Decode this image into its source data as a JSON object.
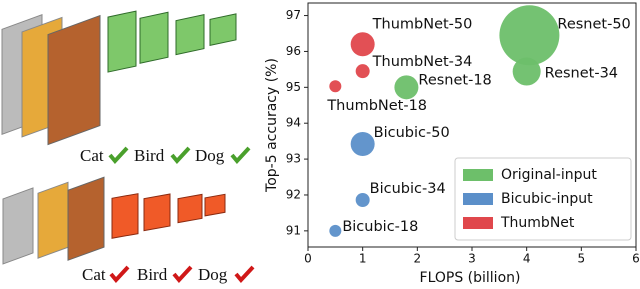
{
  "chart_data": {
    "type": "scatter",
    "xlabel": "FLOPS (billion)",
    "ylabel": "Top-5 accuracy (%)",
    "xlim": [
      0,
      6
    ],
    "xticks": [
      0,
      1,
      2,
      3,
      4,
      5,
      6
    ],
    "ylim": [
      90.55,
      97.35
    ],
    "yticks": [
      91,
      92,
      93,
      94,
      95,
      96,
      97
    ],
    "legend": "lower right",
    "series": [
      {
        "name": "Original-input",
        "color": "#6dbf6a",
        "x": [
          4.05,
          4.0,
          1.8
        ],
        "values": [
          96.45,
          95.44,
          95.0
        ],
        "sizes": [
          900,
          196,
          144
        ],
        "labels": [
          "Resnet-50",
          "Resnet-34",
          "Resnet-18"
        ]
      },
      {
        "name": "Bicubic-input",
        "color": "#5b8fc9",
        "x": [
          1.0,
          1.0,
          0.5
        ],
        "values": [
          93.42,
          91.86,
          91.0
        ],
        "sizes": [
          144,
          49,
          36
        ],
        "labels": [
          "Bicubic-50",
          "Bicubic-34",
          "Bicubic-18"
        ]
      },
      {
        "name": "ThumbNet",
        "color": "#e0474c",
        "x": [
          1.0,
          1.0,
          0.5
        ],
        "values": [
          96.2,
          95.45,
          95.03
        ],
        "sizes": [
          144,
          49,
          36
        ],
        "labels": [
          "ThumbNet-50",
          "ThumbNet-34",
          "ThumbNet-18"
        ]
      }
    ]
  },
  "illustration": {
    "top_labels": [
      "Cat",
      "Bird",
      "Dog"
    ],
    "bottom_labels": [
      "Cat",
      "Bird",
      "Dog"
    ]
  }
}
